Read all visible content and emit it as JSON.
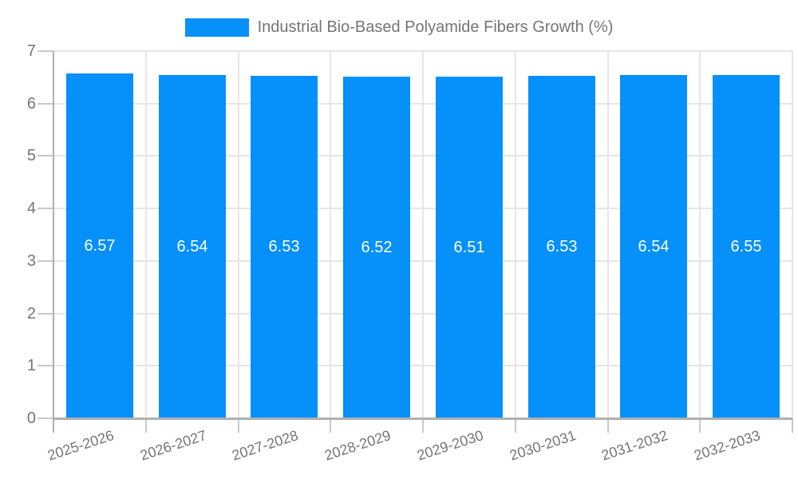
{
  "legend": {
    "label": "Industrial Bio-Based Polyamide Fibers Growth (%)"
  },
  "colors": {
    "bar": "#0590fa",
    "grid": "#e6e6e6",
    "tick": "#c9c9c9",
    "axis": "#b0b0b0",
    "axis_label": "#757575",
    "value_label": "#ffffff",
    "background": "#ffffff"
  },
  "chart_data": {
    "type": "bar",
    "title": "Industrial Bio-Based Polyamide Fibers Growth (%)",
    "categories": [
      "2025-2026",
      "2026-2027",
      "2027-2028",
      "2028-2029",
      "2029-2030",
      "2030-2031",
      "2031-2032",
      "2032-2033"
    ],
    "values": [
      6.57,
      6.54,
      6.53,
      6.52,
      6.51,
      6.53,
      6.54,
      6.55
    ],
    "data_labels": [
      "6.57",
      "6.54",
      "6.53",
      "6.52",
      "6.51",
      "6.53",
      "6.54",
      "6.55"
    ],
    "xlabel": "",
    "ylabel": "",
    "ylim": [
      0,
      7
    ],
    "yticks": [
      0,
      1,
      2,
      3,
      4,
      5,
      6,
      7
    ],
    "grid": true,
    "legend_position": "top",
    "x_label_rotation_deg": -18
  }
}
